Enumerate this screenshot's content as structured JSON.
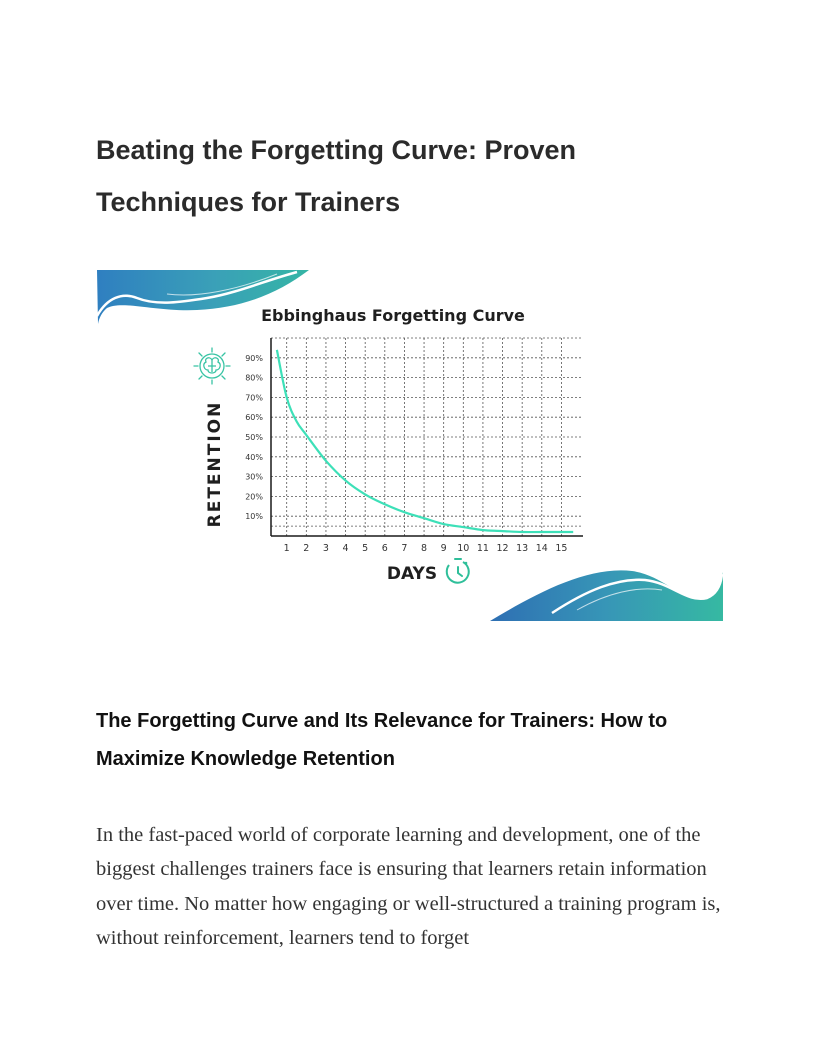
{
  "page": {
    "title": "Beating the Forgetting Curve: Proven Techniques for Trainers",
    "section_heading": "The Forgetting Curve and Its Relevance for Trainers: How to Maximize Knowledge Retention",
    "body_paragraph": "In the fast-paced world of corporate learning and development, one of the biggest challenges trainers face is ensuring that learners retain information over time. No matter how engaging or well-structured a training program is, without reinforcement, learners tend to forget"
  },
  "figure": {
    "icons": [
      "brain-icon",
      "clock-icon"
    ],
    "colors": {
      "curve": "#3de0b8",
      "wave_blue": "#2f7fc0",
      "wave_teal": "#35b5a5",
      "text": "#1f1f1f"
    }
  },
  "chart_data": {
    "type": "line",
    "title": "Ebbinghaus Forgetting Curve",
    "xlabel": "DAYS",
    "ylabel": "RETENTION",
    "x_ticks": [
      "1",
      "2",
      "3",
      "4",
      "5",
      "6",
      "7",
      "8",
      "9",
      "10",
      "11",
      "12",
      "13",
      "14",
      "15"
    ],
    "y_ticks": [
      "90%",
      "80%",
      "70%",
      "60%",
      "50%",
      "40%",
      "30%",
      "20%",
      "10%"
    ],
    "y_tick_values": [
      90,
      80,
      70,
      60,
      50,
      40,
      30,
      20,
      10
    ],
    "xlim": [
      0.2,
      16.1
    ],
    "ylim": [
      0,
      100
    ],
    "grid": true,
    "series": [
      {
        "x": [
          0.5,
          1,
          1.5,
          2,
          3,
          4,
          5,
          6,
          7,
          8,
          9,
          10,
          11,
          12,
          13,
          14,
          15.6
        ],
        "y": [
          94,
          70,
          58,
          51,
          38,
          28,
          21,
          16,
          12,
          9,
          6,
          4.5,
          3,
          2.5,
          2,
          2,
          2
        ]
      }
    ]
  }
}
